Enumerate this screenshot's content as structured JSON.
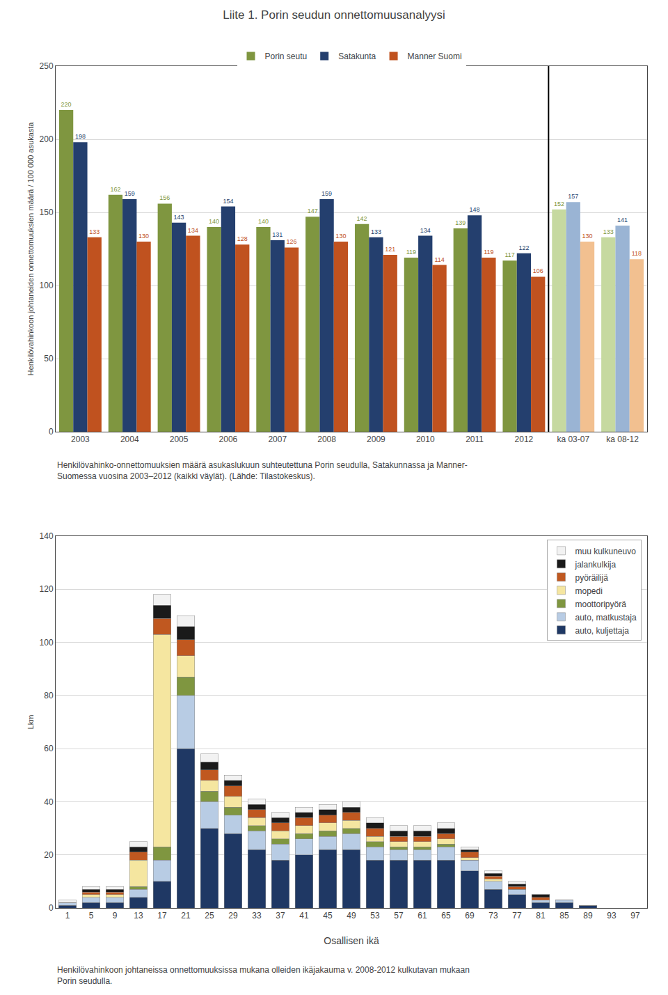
{
  "title": "Liite 1. Porin seudun onnettomuusanalyysi",
  "chart_data": [
    {
      "type": "bar",
      "ylabel": "Henkilövahinkoon johtaneiden onnettomuuksien määrä / 100 000 asukasta",
      "categories": [
        "2003",
        "2004",
        "2005",
        "2006",
        "2007",
        "2008",
        "2009",
        "2010",
        "2011",
        "2012",
        "ka 03-07",
        "ka 08-12"
      ],
      "series": [
        {
          "name": "Porin seutu",
          "color": "#7f9640",
          "colors": [
            "#7f9640",
            "#7f9640",
            "#7f9640",
            "#7f9640",
            "#7f9640",
            "#7f9640",
            "#7f9640",
            "#7f9640",
            "#7f9640",
            "#7f9640",
            "#c6d9a0",
            "#c6d9a0"
          ],
          "values": [
            220,
            162,
            156,
            140,
            140,
            147,
            142,
            119,
            139,
            117,
            152,
            133
          ]
        },
        {
          "name": "Satakunta",
          "color": "#243f6e",
          "colors": [
            "#243f6e",
            "#243f6e",
            "#243f6e",
            "#243f6e",
            "#243f6e",
            "#243f6e",
            "#243f6e",
            "#243f6e",
            "#243f6e",
            "#243f6e",
            "#9ab4d4",
            "#9ab4d4"
          ],
          "values": [
            198,
            159,
            143,
            154,
            131,
            159,
            133,
            134,
            148,
            122,
            157,
            141
          ]
        },
        {
          "name": "Manner Suomi",
          "color": "#c0521f",
          "colors": [
            "#c0521f",
            "#c0521f",
            "#c0521f",
            "#c0521f",
            "#c0521f",
            "#c0521f",
            "#c0521f",
            "#c0521f",
            "#c0521f",
            "#c0521f",
            "#f2c090",
            "#f2c090"
          ],
          "values": [
            133,
            130,
            134,
            128,
            126,
            130,
            121,
            114,
            119,
            106,
            130,
            118
          ]
        }
      ],
      "ylim": [
        0,
        250
      ],
      "yticks": [
        0,
        50,
        100,
        150,
        200,
        250
      ],
      "grid": true,
      "legend": "top",
      "data_labels": true,
      "captions": [
        "Henkilövahinko-onnettomuuksien määrä asukaslukuun suhteutettuna Porin seudulla, Satakunnassa ja Manner-",
        "Suomessa vuosina 2003–2012 (kaikki väylät). (Lähde: Tilastokeskus)."
      ]
    },
    {
      "type": "bar",
      "stacked": true,
      "xlabel": "Osallisen ikä",
      "ylabel": "Lkm",
      "categories": [
        1,
        5,
        9,
        13,
        17,
        21,
        25,
        29,
        33,
        37,
        41,
        45,
        49,
        53,
        57,
        61,
        65,
        69,
        73,
        77,
        81,
        85,
        89,
        93,
        97
      ],
      "series": [
        {
          "name": "auto, kuljettaja",
          "color": "#1f3864",
          "values": [
            1,
            2,
            2,
            4,
            10,
            60,
            30,
            28,
            22,
            18,
            20,
            22,
            22,
            18,
            18,
            18,
            18,
            14,
            7,
            5,
            2,
            2,
            1,
            0,
            0
          ]
        },
        {
          "name": "auto, matkustaja",
          "color": "#b8cce4",
          "values": [
            1,
            2,
            2,
            3,
            8,
            20,
            10,
            7,
            7,
            6,
            6,
            5,
            6,
            5,
            4,
            4,
            5,
            4,
            3,
            2,
            1,
            1,
            0,
            0,
            0
          ]
        },
        {
          "name": "moottoripyörä",
          "color": "#7f9640",
          "values": [
            0,
            0,
            0,
            1,
            5,
            7,
            4,
            3,
            2,
            2,
            2,
            2,
            2,
            2,
            1,
            1,
            1,
            0,
            0,
            0,
            0,
            0,
            0,
            0,
            0
          ]
        },
        {
          "name": "mopedi",
          "color": "#f5e6a0",
          "values": [
            0,
            1,
            1,
            10,
            80,
            8,
            4,
            4,
            3,
            3,
            3,
            3,
            3,
            2,
            2,
            2,
            2,
            1,
            1,
            0,
            0,
            0,
            0,
            0,
            0
          ]
        },
        {
          "name": "pyöräilijä",
          "color": "#c05820",
          "values": [
            0,
            1,
            1,
            3,
            6,
            6,
            4,
            4,
            3,
            3,
            3,
            3,
            3,
            3,
            2,
            2,
            2,
            2,
            1,
            1,
            1,
            0,
            0,
            0,
            0
          ]
        },
        {
          "name": "jalankulkija",
          "color": "#1a1a1a",
          "values": [
            0,
            1,
            1,
            2,
            5,
            5,
            3,
            2,
            2,
            2,
            2,
            2,
            2,
            2,
            2,
            2,
            2,
            1,
            1,
            1,
            1,
            0,
            0,
            0,
            0
          ]
        },
        {
          "name": "muu kulkuneuvo",
          "color": "#f2f2f2",
          "values": [
            1,
            1,
            1,
            2,
            4,
            4,
            3,
            2,
            2,
            2,
            2,
            2,
            2,
            2,
            2,
            2,
            2,
            1,
            1,
            1,
            0,
            0,
            0,
            0,
            0
          ]
        }
      ],
      "ylim": [
        0,
        140
      ],
      "yticks": [
        0,
        20,
        40,
        60,
        80,
        100,
        120,
        140
      ],
      "grid": true,
      "legend": "top right",
      "captions": [
        "Henkilövahinkoon johtaneissa onnettomuuksissa mukana olleiden ikäjakauma v. 2008-2012 kulkutavan mukaan",
        "Porin seudulla."
      ]
    }
  ]
}
